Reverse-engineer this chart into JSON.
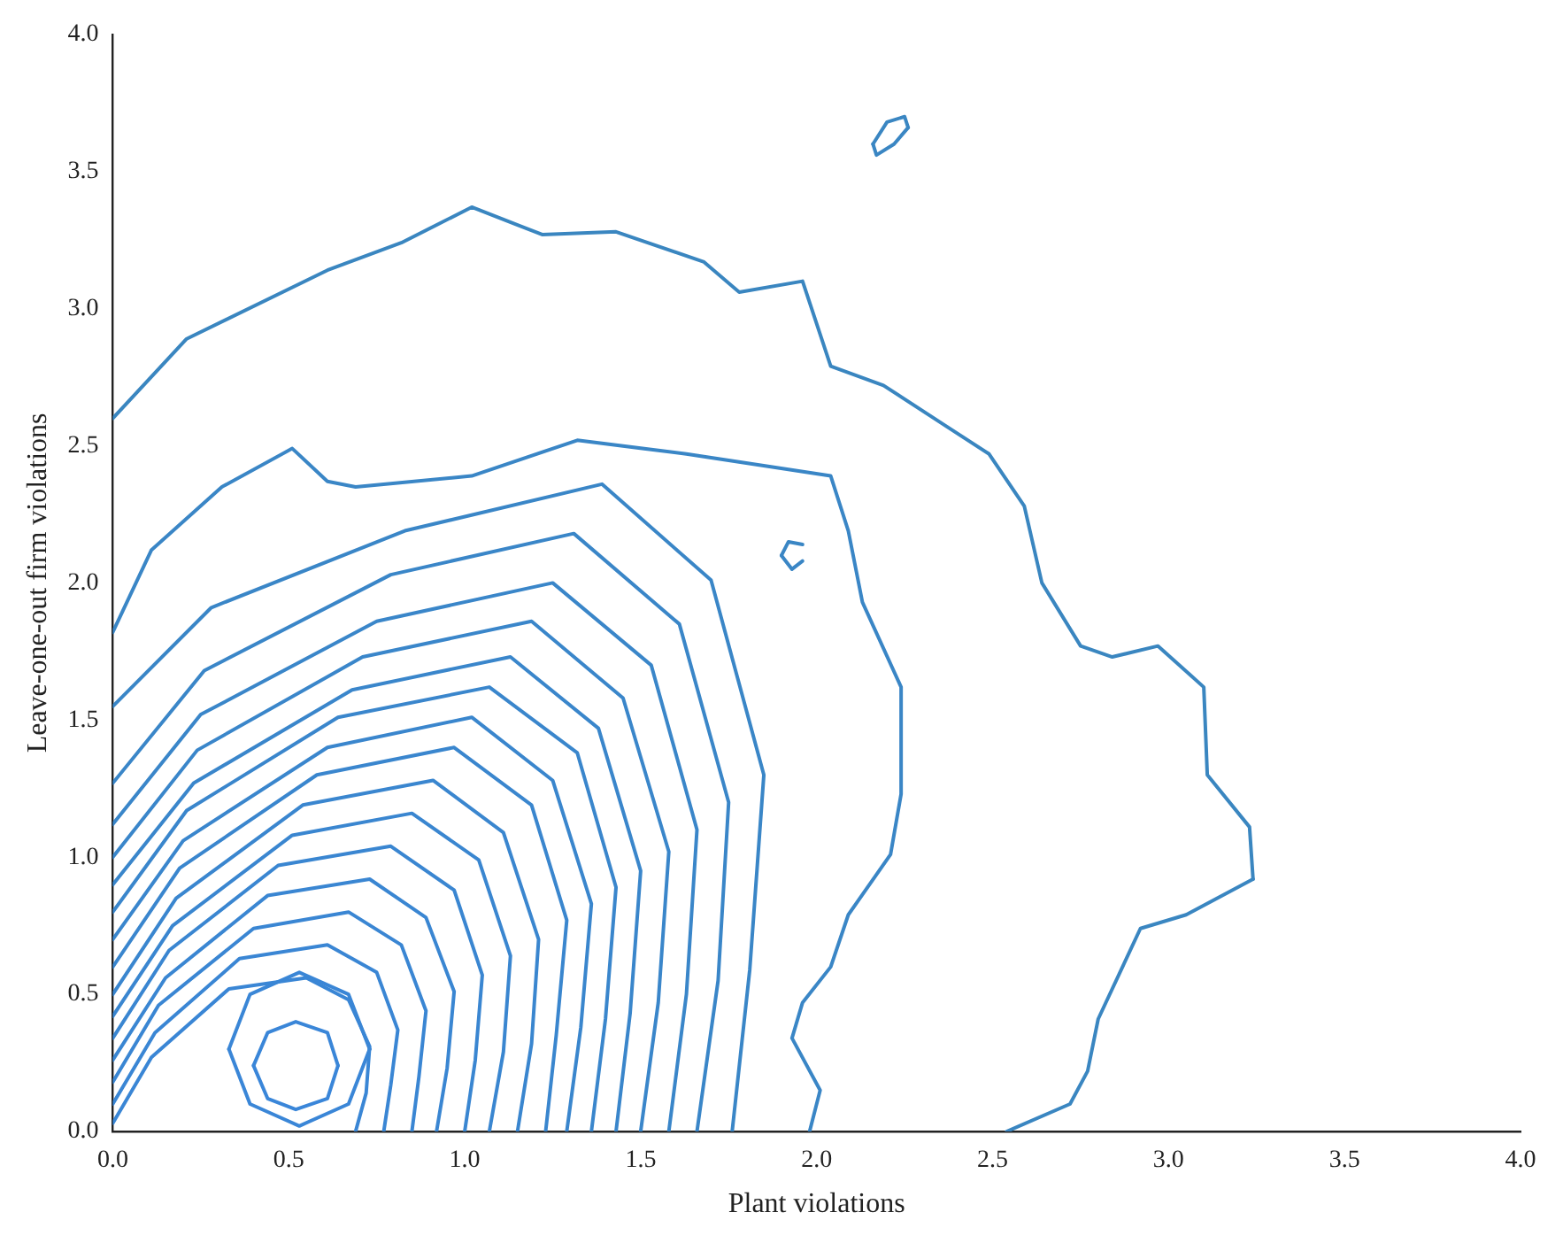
{
  "chart_data": {
    "type": "line",
    "xlabel": "Plant violations",
    "ylabel": "Leave-one-out firm violations",
    "xlim": [
      0,
      4
    ],
    "ylim": [
      0,
      4
    ],
    "xticks": [
      {
        "value": 0,
        "label": "0.0"
      },
      {
        "value": 0.5,
        "label": "0.5"
      },
      {
        "value": 1,
        "label": "1.0"
      },
      {
        "value": 1.5,
        "label": "1.5"
      },
      {
        "value": 2,
        "label": "2.0"
      },
      {
        "value": 2.5,
        "label": "2.5"
      },
      {
        "value": 3,
        "label": "3.0"
      },
      {
        "value": 3.5,
        "label": "3.5"
      },
      {
        "value": 4,
        "label": "4.0"
      }
    ],
    "yticks": [
      {
        "value": 0,
        "label": "0.0"
      },
      {
        "value": 0.5,
        "label": "0.5"
      },
      {
        "value": 1,
        "label": "1.0"
      },
      {
        "value": 1.5,
        "label": "1.5"
      },
      {
        "value": 2,
        "label": "2.0"
      },
      {
        "value": 2.5,
        "label": "2.5"
      },
      {
        "value": 3,
        "label": "3.0"
      },
      {
        "value": 3.5,
        "label": "3.5"
      },
      {
        "value": 4,
        "label": "4.0"
      }
    ],
    "grid": false,
    "legend": false,
    "marker": "none",
    "line_style": "solid",
    "series": [
      {
        "color": "#3a86c0",
        "x": [
          0,
          0.21,
          0.61,
          0.82,
          1.02,
          1.22,
          1.43,
          1.68,
          1.78,
          1.96,
          2.04,
          2.19,
          2.37,
          2.49,
          2.59,
          2.64,
          2.75,
          2.84,
          2.97,
          3.1,
          3.11,
          3.23,
          3.24
        ],
        "values": [
          2.6,
          2.89,
          3.14,
          3.24,
          3.37,
          3.27,
          3.28,
          3.17,
          3.06,
          3.1,
          2.79,
          2.72,
          2.57,
          2.47,
          2.28,
          2.0,
          1.77,
          1.73,
          1.77,
          1.62,
          1.3,
          1.11,
          0.92
        ]
      },
      {
        "color": "#3a86c1",
        "x": [
          3.24,
          3.05,
          2.92,
          2.8,
          2.77,
          2.72,
          2.54
        ],
        "values": [
          0.92,
          0.79,
          0.74,
          0.41,
          0.22,
          0.1,
          0
        ]
      },
      {
        "color": "#3a86c2",
        "x": [
          2.16,
          2.2,
          2.25,
          2.26
        ],
        "values": [
          3.6,
          3.68,
          3.7,
          3.66
        ]
      },
      {
        "color": "#3a86c3",
        "x": [
          2.16,
          2.17,
          2.22,
          2.26
        ],
        "values": [
          3.6,
          3.56,
          3.6,
          3.66
        ]
      },
      {
        "color": "#3a86c4",
        "x": [
          1.9,
          1.92,
          1.96
        ],
        "values": [
          2.1,
          2.15,
          2.14
        ]
      },
      {
        "color": "#3a86c5",
        "x": [
          1.9,
          1.93,
          1.96
        ],
        "values": [
          2.1,
          2.05,
          2.08
        ]
      },
      {
        "color": "#3a86c6",
        "x": [
          0,
          0.11,
          0.31,
          0.51,
          0.61,
          0.69,
          1.02,
          1.32,
          1.63,
          2.04,
          2.09,
          2.13,
          2.24,
          2.24,
          2.21,
          2.09,
          2.04,
          1.96,
          1.93,
          2.01,
          1.98
        ],
        "values": [
          1.82,
          2.12,
          2.35,
          2.49,
          2.37,
          2.35,
          2.39,
          2.52,
          2.47,
          2.39,
          2.19,
          1.93,
          1.62,
          1.23,
          1.01,
          0.79,
          0.6,
          0.47,
          0.34,
          0.15,
          0
        ]
      },
      {
        "color": "#3a86c7",
        "x": [
          0,
          0.28,
          0.83,
          1.39,
          1.7,
          1.85,
          1.81,
          1.76
        ],
        "values": [
          1.55,
          1.91,
          2.19,
          2.36,
          2.01,
          1.3,
          0.59,
          0
        ]
      },
      {
        "color": "#3a86c8",
        "x": [
          0,
          0.26,
          0.79,
          1.31,
          1.61,
          1.75,
          1.72,
          1.66
        ],
        "values": [
          1.27,
          1.68,
          2.03,
          2.18,
          1.85,
          1.2,
          0.55,
          0
        ]
      },
      {
        "color": "#3a86c9",
        "x": [
          0,
          0.25,
          0.75,
          1.25,
          1.53,
          1.66,
          1.63,
          1.58
        ],
        "values": [
          1.12,
          1.52,
          1.86,
          2.0,
          1.7,
          1.1,
          0.5,
          0
        ]
      },
      {
        "color": "#3a86ca",
        "x": [
          0,
          0.24,
          0.71,
          1.19,
          1.45,
          1.58,
          1.55,
          1.5
        ],
        "values": [
          1.0,
          1.39,
          1.73,
          1.86,
          1.58,
          1.02,
          0.47,
          0
        ]
      },
      {
        "color": "#3a86cb",
        "x": [
          0,
          0.23,
          0.68,
          1.13,
          1.38,
          1.5,
          1.47,
          1.43
        ],
        "values": [
          0.9,
          1.27,
          1.61,
          1.73,
          1.47,
          0.95,
          0.43,
          0
        ]
      },
      {
        "color": "#3a86cc",
        "x": [
          0,
          0.21,
          0.64,
          1.07,
          1.32,
          1.43,
          1.4,
          1.36
        ],
        "values": [
          0.8,
          1.17,
          1.51,
          1.62,
          1.38,
          0.89,
          0.41,
          0
        ]
      },
      {
        "color": "#3a86cd",
        "x": [
          0,
          0.2,
          0.61,
          1.02,
          1.25,
          1.36,
          1.33,
          1.29
        ],
        "values": [
          0.7,
          1.06,
          1.4,
          1.51,
          1.28,
          0.83,
          0.38,
          0
        ]
      },
      {
        "color": "#3a86ce",
        "x": [
          0,
          0.19,
          0.58,
          0.97,
          1.19,
          1.29,
          1.26,
          1.23
        ],
        "values": [
          0.6,
          0.96,
          1.3,
          1.4,
          1.19,
          0.77,
          0.35,
          0
        ]
      },
      {
        "color": "#3a86cf",
        "x": [
          0,
          0.18,
          0.54,
          0.91,
          1.11,
          1.21,
          1.19,
          1.15
        ],
        "values": [
          0.5,
          0.85,
          1.19,
          1.28,
          1.09,
          0.7,
          0.32,
          0
        ]
      },
      {
        "color": "#3a86d0",
        "x": [
          0,
          0.17,
          0.51,
          0.85,
          1.04,
          1.13,
          1.11,
          1.07
        ],
        "values": [
          0.42,
          0.75,
          1.08,
          1.16,
          0.99,
          0.64,
          0.29,
          0
        ]
      },
      {
        "color": "#3a86d1",
        "x": [
          0,
          0.16,
          0.47,
          0.79,
          0.97,
          1.05,
          1.03,
          1.0
        ],
        "values": [
          0.34,
          0.66,
          0.97,
          1.04,
          0.88,
          0.57,
          0.26,
          0
        ]
      },
      {
        "color": "#3a86d2",
        "x": [
          0,
          0.15,
          0.44,
          0.73,
          0.89,
          0.97,
          0.95,
          0.92
        ],
        "values": [
          0.26,
          0.56,
          0.86,
          0.92,
          0.78,
          0.51,
          0.23,
          0
        ]
      },
      {
        "color": "#3a86d3",
        "x": [
          0,
          0.13,
          0.4,
          0.67,
          0.82,
          0.89,
          0.87,
          0.85
        ],
        "values": [
          0.18,
          0.46,
          0.74,
          0.8,
          0.68,
          0.44,
          0.2,
          0
        ]
      },
      {
        "color": "#3a86d4",
        "x": [
          0,
          0.12,
          0.36,
          0.61,
          0.75,
          0.81,
          0.79,
          0.77
        ],
        "values": [
          0.1,
          0.36,
          0.63,
          0.68,
          0.58,
          0.37,
          0.17,
          0
        ]
      },
      {
        "color": "#3a86d5",
        "x": [
          0,
          0.11,
          0.33,
          0.55,
          0.67,
          0.73,
          0.72,
          0.69
        ],
        "values": [
          0.03,
          0.27,
          0.52,
          0.56,
          0.48,
          0.31,
          0.14,
          0
        ]
      },
      {
        "color": "#3a86d6",
        "x": [
          0.33,
          0.39,
          0.53,
          0.67,
          0.73
        ],
        "values": [
          0.3,
          0.5,
          0.58,
          0.5,
          0.3
        ]
      },
      {
        "color": "#3a86d7",
        "x": [
          0.33,
          0.39,
          0.53,
          0.67,
          0.73
        ],
        "values": [
          0.3,
          0.1,
          0.02,
          0.1,
          0.3
        ]
      },
      {
        "color": "#3a86d8",
        "x": [
          0.4,
          0.44,
          0.52,
          0.61,
          0.64
        ],
        "values": [
          0.24,
          0.36,
          0.4,
          0.36,
          0.24
        ]
      },
      {
        "color": "#3a86d9",
        "x": [
          0.4,
          0.44,
          0.52,
          0.61,
          0.64
        ],
        "values": [
          0.24,
          0.12,
          0.08,
          0.12,
          0.24
        ]
      }
    ]
  }
}
